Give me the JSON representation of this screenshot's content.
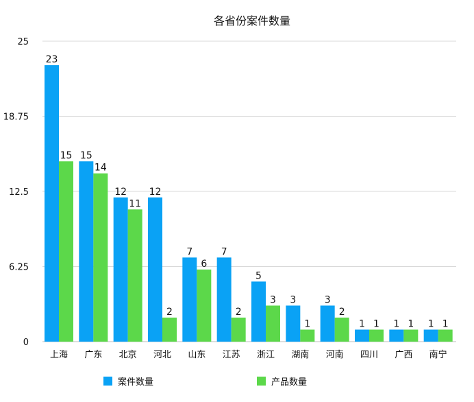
{
  "chart_data": {
    "type": "bar",
    "title": "各省份案件数量",
    "categories": [
      "上海",
      "广东",
      "北京",
      "河北",
      "山东",
      "江苏",
      "浙江",
      "湖南",
      "河南",
      "四川",
      "广西",
      "南宁"
    ],
    "series": [
      {
        "name": "案件数量",
        "color": "#0aa2f5",
        "values": [
          23,
          15,
          12,
          12,
          7,
          7,
          5,
          3,
          3,
          1,
          1,
          1
        ]
      },
      {
        "name": "产品数量",
        "color": "#5cd84a",
        "values": [
          15,
          14,
          11,
          2,
          6,
          2,
          3,
          1,
          2,
          1,
          1,
          1
        ]
      }
    ],
    "ylim": [
      0,
      25
    ],
    "yticks": [
      "0",
      "6.25",
      "12.5",
      "18.75",
      "25"
    ],
    "xlabel": "",
    "ylabel": "",
    "grid": true,
    "legend_position": "bottom"
  }
}
